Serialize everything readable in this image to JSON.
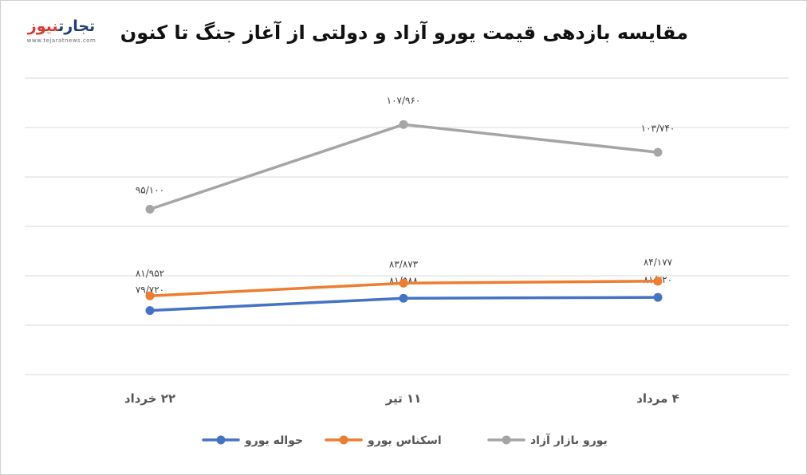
{
  "header": {
    "title": "مقایسه بازدهی قیمت یورو آزاد و دولتی از آغاز جنگ تا کنون"
  },
  "logo": {
    "part_a": "تجارت",
    "part_b": "نیوز",
    "url": "www.tejaratnews.com"
  },
  "chart_data": {
    "type": "line",
    "title": "مقایسه بازدهی قیمت یورو آزاد و دولتی از آغاز جنگ تا کنون",
    "xlabel": "",
    "ylabel": "",
    "categories": [
      "۲۲ خرداد",
      "۱۱ تیر",
      "۴ مرداد"
    ],
    "ylim": [
      70000,
      115000
    ],
    "grid": true,
    "legend_position": "bottom",
    "series": [
      {
        "name": "حواله یورو",
        "color": "#4472c4",
        "values": [
          79720,
          81588,
          81720
        ],
        "labels": [
          "۷۹/۷۲۰",
          "۸۱/۵۸۸",
          "۸۱/۷۲۰"
        ]
      },
      {
        "name": "اسکناس یورو",
        "color": "#ed7d31",
        "values": [
          81952,
          83873,
          84177
        ],
        "labels": [
          "۸۱/۹۵۲",
          "۸۳/۸۷۳",
          "۸۴/۱۷۷"
        ]
      },
      {
        "name": "یورو بازار آزاد",
        "color": "#a5a5a5",
        "values": [
          95100,
          107960,
          103740
        ],
        "labels": [
          "۹۵/۱۰۰",
          "۱۰۷/۹۶۰",
          "۱۰۳/۷۴۰"
        ]
      }
    ]
  }
}
